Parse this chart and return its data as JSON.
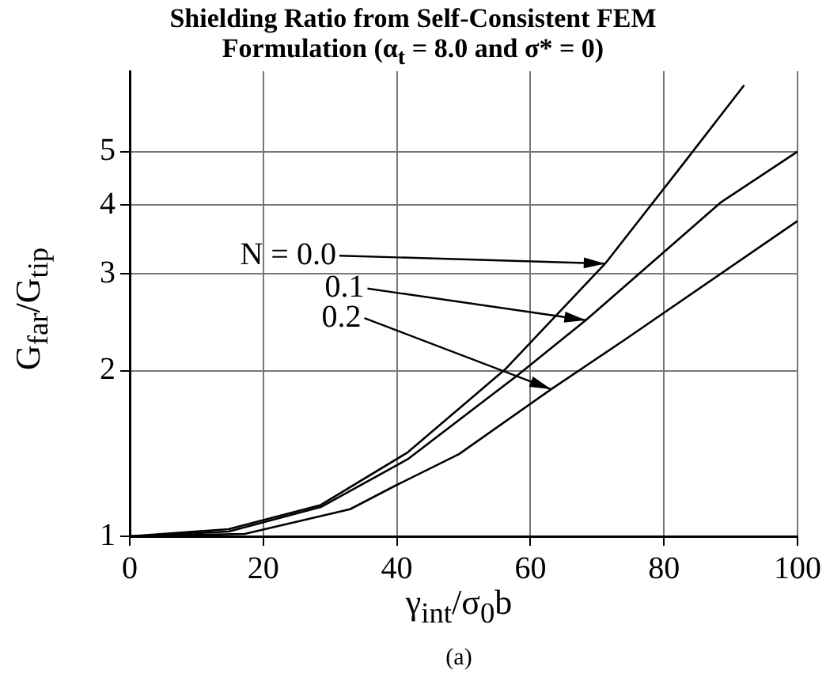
{
  "chart_data": {
    "type": "line",
    "title": "Shielding Ratio from Self-Consistent FEM\nFormulation  (α$_{t}$ = 8.0 and σ* = 0)",
    "xlabel": "γ$_{int}$/σ$_{0}$b",
    "ylabel": "G$_{far}$/G$_{tip}$",
    "series": [
      {
        "color": "#000000",
        "x": [
          0,
          14.8,
          28.6,
          41.6,
          56.2,
          71.2,
          83,
          92
        ],
        "values": [
          1,
          1.03,
          1.14,
          1.42,
          2.01,
          3.13,
          4.77,
          6.6
        ]
      },
      {
        "color": "#000000",
        "x": [
          0,
          14.8,
          28.6,
          41.6,
          57.8,
          68.3,
          88.6,
          100
        ],
        "values": [
          1,
          1.02,
          1.13,
          1.38,
          1.95,
          2.47,
          4.05,
          5.0
        ]
      },
      {
        "color": "#000000",
        "x": [
          0,
          17.2,
          33,
          40,
          49.3,
          63.1,
          74,
          100
        ],
        "values": [
          1,
          1.01,
          1.12,
          1.24,
          1.41,
          1.85,
          2.27,
          3.74
        ]
      }
    ],
    "annotations": [
      {
        "text": "N = 0.0",
        "x": 71.2,
        "y": 3.13
      },
      {
        "text": "0.1",
        "x": 68.3,
        "y": 2.47
      },
      {
        "text": "0.2",
        "x": 63.1,
        "y": 1.85
      },
      "(a)"
    ],
    "xlim": [
      0,
      100
    ],
    "xticks": [
      0,
      20,
      40,
      60,
      80,
      100
    ],
    "ylim": [
      1,
      7
    ],
    "yticks": [
      1,
      2,
      3,
      4,
      5
    ],
    "log": "y",
    "grid": true,
    "legend": false,
    "marker": "none",
    "line_style": "solid"
  }
}
